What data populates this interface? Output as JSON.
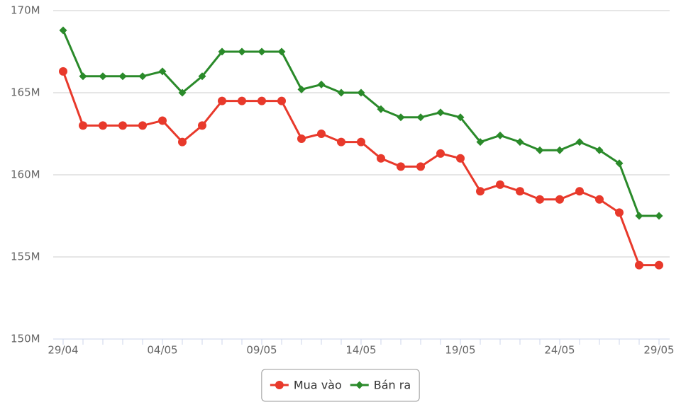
{
  "chart_data": {
    "type": "line",
    "categories": [
      "29/04",
      null,
      null,
      null,
      null,
      "04/05",
      null,
      null,
      null,
      null,
      "09/05",
      null,
      null,
      null,
      null,
      "14/05",
      null,
      null,
      null,
      null,
      "19/05",
      null,
      null,
      null,
      null,
      "24/05",
      null,
      null,
      null,
      null,
      "29/05"
    ],
    "series": [
      {
        "name": "Mua vào",
        "color": "#e8392b",
        "marker": "circle",
        "values": [
          166300000,
          163000000,
          163000000,
          163000000,
          163000000,
          163300000,
          162000000,
          163000000,
          164500000,
          164500000,
          164500000,
          164500000,
          162200000,
          162500000,
          162000000,
          162000000,
          161000000,
          160500000,
          160500000,
          161300000,
          161000000,
          159000000,
          159400000,
          159000000,
          158500000,
          158500000,
          159000000,
          158500000,
          157700000,
          154500000,
          154500000
        ]
      },
      {
        "name": "Bán ra",
        "color": "#2a8a2a",
        "marker": "diamond",
        "values": [
          168800000,
          166000000,
          166000000,
          166000000,
          166000000,
          166300000,
          165000000,
          166000000,
          167500000,
          167500000,
          167500000,
          167500000,
          165200000,
          165500000,
          165000000,
          165000000,
          164000000,
          163500000,
          163500000,
          163800000,
          163500000,
          162000000,
          162400000,
          162000000,
          161500000,
          161500000,
          162000000,
          161500000,
          160700000,
          157500000,
          157500000
        ]
      }
    ],
    "ylim": [
      150000000,
      170000000
    ],
    "yticks": [
      {
        "value": 150000000,
        "label": "150M"
      },
      {
        "value": 155000000,
        "label": "155M"
      },
      {
        "value": 160000000,
        "label": "160M"
      },
      {
        "value": 165000000,
        "label": "165M"
      },
      {
        "value": 170000000,
        "label": "170M"
      }
    ],
    "grid": true,
    "legend": "bottom"
  }
}
